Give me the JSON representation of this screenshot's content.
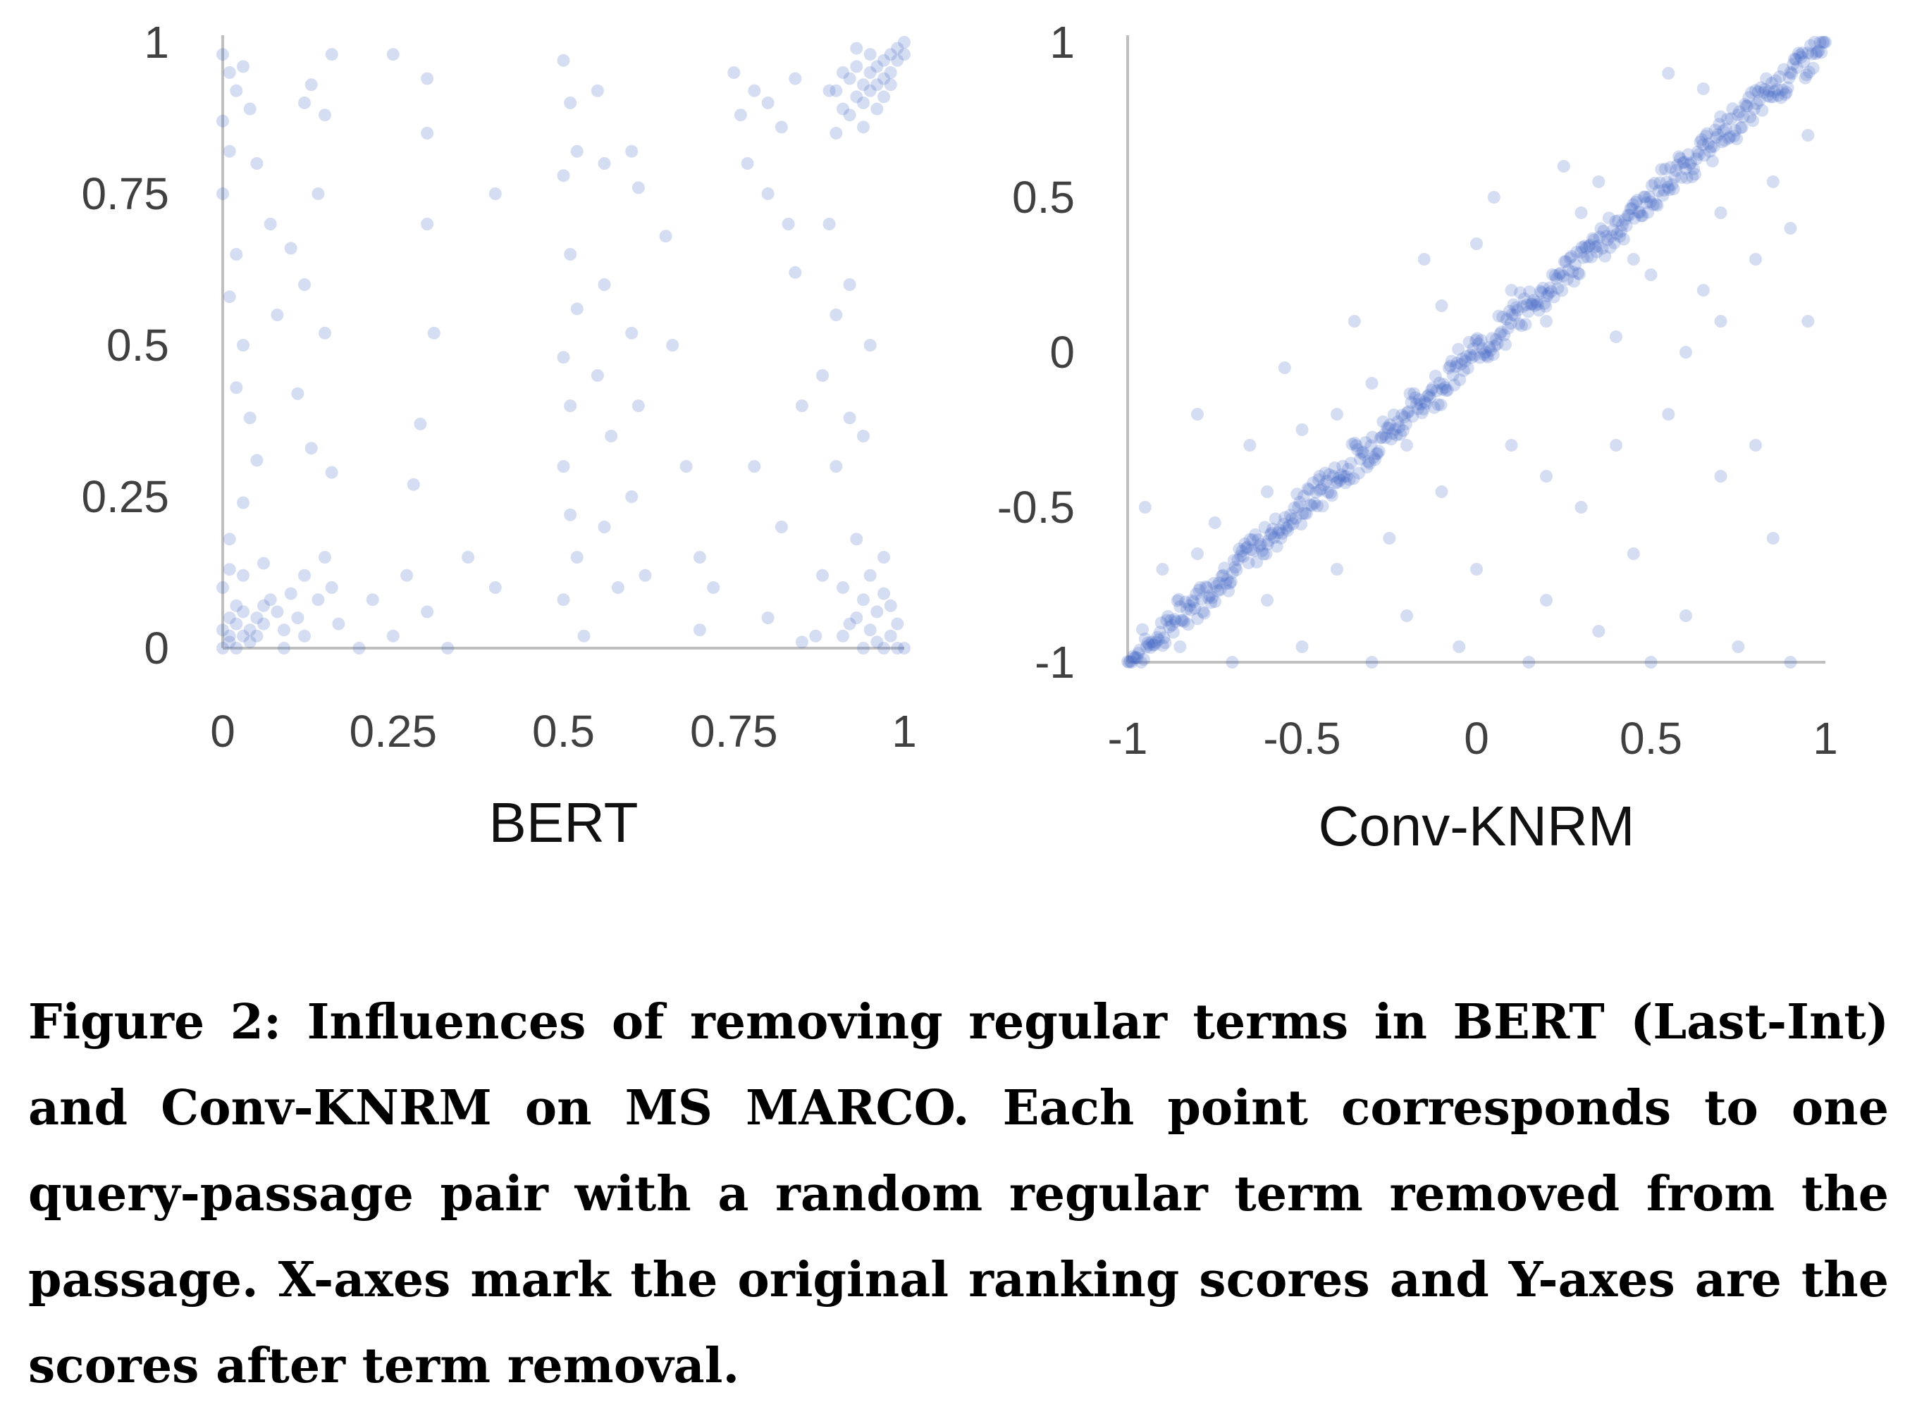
{
  "chart_data": [
    {
      "type": "scatter",
      "title": "",
      "xlabel": "BERT",
      "ylabel": "",
      "xlim": [
        0,
        1
      ],
      "ylim": [
        0,
        1
      ],
      "xticks": [
        "0",
        "0.25",
        "0.5",
        "0.75",
        "1"
      ],
      "yticks": [
        "0",
        "0.25",
        "0.5",
        "0.75",
        "1"
      ],
      "grid": false,
      "point_color": "#3f63c6",
      "description_points": "dense clusters near (0,0) and (1,1); scattered points elsewhere",
      "points": [
        [
          0.0,
          0.0
        ],
        [
          0.01,
          0.01
        ],
        [
          0.02,
          0.0
        ],
        [
          0.01,
          0.02
        ],
        [
          0.03,
          0.02
        ],
        [
          0.02,
          0.04
        ],
        [
          0.04,
          0.03
        ],
        [
          0.05,
          0.05
        ],
        [
          0.06,
          0.04
        ],
        [
          0.03,
          0.06
        ],
        [
          0.07,
          0.08
        ],
        [
          0.08,
          0.06
        ],
        [
          0.0,
          0.03
        ],
        [
          0.01,
          0.05
        ],
        [
          0.02,
          0.07
        ],
        [
          0.04,
          0.01
        ],
        [
          0.05,
          0.02
        ],
        [
          0.06,
          0.07
        ],
        [
          0.09,
          0.03
        ],
        [
          0.1,
          0.09
        ],
        [
          0.11,
          0.05
        ],
        [
          0.12,
          0.12
        ],
        [
          0.14,
          0.08
        ],
        [
          0.15,
          0.15
        ],
        [
          0.16,
          0.1
        ],
        [
          0.0,
          0.1
        ],
        [
          0.01,
          0.13
        ],
        [
          0.03,
          0.12
        ],
        [
          0.06,
          0.14
        ],
        [
          0.09,
          0.0
        ],
        [
          0.12,
          0.02
        ],
        [
          0.17,
          0.04
        ],
        [
          0.2,
          0.0
        ],
        [
          0.22,
          0.08
        ],
        [
          0.25,
          0.02
        ],
        [
          0.27,
          0.12
        ],
        [
          0.3,
          0.06
        ],
        [
          0.33,
          0.0
        ],
        [
          0.36,
          0.15
        ],
        [
          0.0,
          0.98
        ],
        [
          0.01,
          0.95
        ],
        [
          0.02,
          0.92
        ],
        [
          0.03,
          0.96
        ],
        [
          0.0,
          0.87
        ],
        [
          0.01,
          0.82
        ],
        [
          0.04,
          0.89
        ],
        [
          0.05,
          0.8
        ],
        [
          0.0,
          0.75
        ],
        [
          0.02,
          0.65
        ],
        [
          0.01,
          0.58
        ],
        [
          0.03,
          0.5
        ],
        [
          0.02,
          0.43
        ],
        [
          0.04,
          0.38
        ],
        [
          0.05,
          0.31
        ],
        [
          0.03,
          0.24
        ],
        [
          0.01,
          0.18
        ],
        [
          0.07,
          0.7
        ],
        [
          0.08,
          0.55
        ],
        [
          0.1,
          0.66
        ],
        [
          0.12,
          0.9
        ],
        [
          0.13,
          0.93
        ],
        [
          0.15,
          0.88
        ],
        [
          0.16,
          0.98
        ],
        [
          0.14,
          0.75
        ],
        [
          0.12,
          0.6
        ],
        [
          0.15,
          0.52
        ],
        [
          0.13,
          0.33
        ],
        [
          0.16,
          0.29
        ],
        [
          0.11,
          0.42
        ],
        [
          0.25,
          0.98
        ],
        [
          0.3,
          0.94
        ],
        [
          0.3,
          0.85
        ],
        [
          0.3,
          0.7
        ],
        [
          0.31,
          0.52
        ],
        [
          0.29,
          0.37
        ],
        [
          0.28,
          0.27
        ],
        [
          0.4,
          0.75
        ],
        [
          0.4,
          0.1
        ],
        [
          0.5,
          0.97
        ],
        [
          0.51,
          0.9
        ],
        [
          0.52,
          0.82
        ],
        [
          0.5,
          0.78
        ],
        [
          0.51,
          0.65
        ],
        [
          0.52,
          0.56
        ],
        [
          0.5,
          0.48
        ],
        [
          0.51,
          0.4
        ],
        [
          0.5,
          0.3
        ],
        [
          0.51,
          0.22
        ],
        [
          0.52,
          0.15
        ],
        [
          0.5,
          0.08
        ],
        [
          0.53,
          0.02
        ],
        [
          0.55,
          0.92
        ],
        [
          0.56,
          0.8
        ],
        [
          0.56,
          0.6
        ],
        [
          0.55,
          0.45
        ],
        [
          0.57,
          0.35
        ],
        [
          0.56,
          0.2
        ],
        [
          0.58,
          0.1
        ],
        [
          0.6,
          0.82
        ],
        [
          0.61,
          0.76
        ],
        [
          0.6,
          0.52
        ],
        [
          0.61,
          0.4
        ],
        [
          0.6,
          0.25
        ],
        [
          0.62,
          0.12
        ],
        [
          0.65,
          0.68
        ],
        [
          0.66,
          0.5
        ],
        [
          0.68,
          0.3
        ],
        [
          0.7,
          0.15
        ],
        [
          0.7,
          0.03
        ],
        [
          0.72,
          0.1
        ],
        [
          0.75,
          0.95
        ],
        [
          0.76,
          0.88
        ],
        [
          0.78,
          0.92
        ],
        [
          0.8,
          0.9
        ],
        [
          0.77,
          0.8
        ],
        [
          0.8,
          0.75
        ],
        [
          0.82,
          0.86
        ],
        [
          0.84,
          0.94
        ],
        [
          0.83,
          0.7
        ],
        [
          0.84,
          0.62
        ],
        [
          0.85,
          0.4
        ],
        [
          0.82,
          0.2
        ],
        [
          0.8,
          0.05
        ],
        [
          0.78,
          0.3
        ],
        [
          0.85,
          0.01
        ],
        [
          0.87,
          0.02
        ],
        [
          0.88,
          0.12
        ],
        [
          0.88,
          0.45
        ],
        [
          0.89,
          0.7
        ],
        [
          0.9,
          0.55
        ],
        [
          0.9,
          0.3
        ],
        [
          0.91,
          0.1
        ],
        [
          0.91,
          0.02
        ],
        [
          0.92,
          0.04
        ],
        [
          0.92,
          0.6
        ],
        [
          0.92,
          0.38
        ],
        [
          0.93,
          0.05
        ],
        [
          0.93,
          0.18
        ],
        [
          0.94,
          0.08
        ],
        [
          0.94,
          0.0
        ],
        [
          0.95,
          0.03
        ],
        [
          0.95,
          0.12
        ],
        [
          0.96,
          0.01
        ],
        [
          0.96,
          0.06
        ],
        [
          0.97,
          0.0
        ],
        [
          0.97,
          0.09
        ],
        [
          0.98,
          0.02
        ],
        [
          0.99,
          0.0
        ],
        [
          1.0,
          0.0
        ],
        [
          0.98,
          0.07
        ],
        [
          0.99,
          0.04
        ],
        [
          0.97,
          0.15
        ],
        [
          0.94,
          0.35
        ],
        [
          0.95,
          0.5
        ],
        [
          0.9,
          0.92
        ],
        [
          0.91,
          0.89
        ],
        [
          0.92,
          0.94
        ],
        [
          0.93,
          0.91
        ],
        [
          0.93,
          0.96
        ],
        [
          0.94,
          0.93
        ],
        [
          0.94,
          0.9
        ],
        [
          0.95,
          0.95
        ],
        [
          0.95,
          0.92
        ],
        [
          0.96,
          0.96
        ],
        [
          0.96,
          0.93
        ],
        [
          0.97,
          0.97
        ],
        [
          0.97,
          0.94
        ],
        [
          0.98,
          0.98
        ],
        [
          0.98,
          0.95
        ],
        [
          0.99,
          0.99
        ],
        [
          0.99,
          0.97
        ],
        [
          1.0,
          1.0
        ],
        [
          1.0,
          0.98
        ],
        [
          0.91,
          0.95
        ],
        [
          0.92,
          0.88
        ],
        [
          0.9,
          0.85
        ],
        [
          0.89,
          0.92
        ],
        [
          0.94,
          0.86
        ],
        [
          0.96,
          0.89
        ],
        [
          0.97,
          0.91
        ],
        [
          0.98,
          0.93
        ],
        [
          0.95,
          0.98
        ],
        [
          0.93,
          0.99
        ]
      ]
    },
    {
      "type": "scatter",
      "title": "",
      "xlabel": "Conv-KNRM",
      "ylabel": "",
      "xlim": [
        -1,
        1
      ],
      "ylim": [
        -1,
        1
      ],
      "xticks": [
        "-1",
        "-0.5",
        "0",
        "0.5",
        "1"
      ],
      "yticks": [
        "-1",
        "-0.5",
        "0",
        "0.5",
        "1"
      ],
      "grid": false,
      "point_color": "#3f63c6",
      "description_points": "dense band along y = x with scattered outliers",
      "diagonal_samples": 520,
      "outliers": [
        [
          -0.95,
          -0.5
        ],
        [
          -0.9,
          -0.7
        ],
        [
          -0.85,
          -0.95
        ],
        [
          -0.8,
          -0.2
        ],
        [
          -0.75,
          -0.55
        ],
        [
          -0.7,
          -1.0
        ],
        [
          -0.65,
          -0.3
        ],
        [
          -0.6,
          -0.8
        ],
        [
          -0.55,
          -0.05
        ],
        [
          -0.5,
          -0.95
        ],
        [
          -0.45,
          -0.4
        ],
        [
          -0.4,
          -0.7
        ],
        [
          -0.35,
          0.1
        ],
        [
          -0.3,
          -1.0
        ],
        [
          -0.25,
          -0.6
        ],
        [
          -0.2,
          -0.85
        ],
        [
          -0.15,
          0.3
        ],
        [
          -0.1,
          -0.45
        ],
        [
          -0.05,
          -0.95
        ],
        [
          0.0,
          -0.7
        ],
        [
          0.05,
          0.5
        ],
        [
          0.1,
          -0.3
        ],
        [
          0.15,
          -1.0
        ],
        [
          0.2,
          -0.8
        ],
        [
          0.25,
          0.6
        ],
        [
          0.3,
          -0.5
        ],
        [
          0.35,
          -0.9
        ],
        [
          0.4,
          0.05
        ],
        [
          0.45,
          -0.65
        ],
        [
          0.5,
          -1.0
        ],
        [
          0.55,
          -0.2
        ],
        [
          0.6,
          -0.85
        ],
        [
          0.65,
          0.2
        ],
        [
          0.7,
          -0.4
        ],
        [
          0.75,
          -0.95
        ],
        [
          0.8,
          0.3
        ],
        [
          0.85,
          -0.6
        ],
        [
          0.9,
          -1.0
        ],
        [
          0.95,
          0.1
        ],
        [
          0.6,
          0.0
        ],
        [
          0.7,
          0.1
        ],
        [
          0.8,
          -0.3
        ],
        [
          0.9,
          0.4
        ],
        [
          0.4,
          -0.3
        ],
        [
          0.2,
          -0.4
        ],
        [
          0.1,
          0.2
        ],
        [
          -0.2,
          -0.3
        ],
        [
          -0.4,
          -0.2
        ],
        [
          0.3,
          0.45
        ],
        [
          0.5,
          0.25
        ],
        [
          0.7,
          0.45
        ],
        [
          0.85,
          0.55
        ],
        [
          0.95,
          0.7
        ],
        [
          -0.6,
          -0.45
        ],
        [
          -0.8,
          -0.65
        ],
        [
          -0.3,
          -0.1
        ],
        [
          0.0,
          0.35
        ],
        [
          0.2,
          0.1
        ],
        [
          0.45,
          0.3
        ],
        [
          0.65,
          0.85
        ],
        [
          0.55,
          0.9
        ],
        [
          0.35,
          0.55
        ],
        [
          -0.1,
          0.15
        ],
        [
          -0.5,
          -0.25
        ]
      ]
    }
  ],
  "caption": "Figure 2: Influences of removing regular terms in BERT (Last-Int) and Conv-KNRM on MS MARCO. Each point corresponds to one query-passage pair with a random regular term removed from the passage. X-axes mark the original ranking scores and Y-axes are the scores after term removal."
}
